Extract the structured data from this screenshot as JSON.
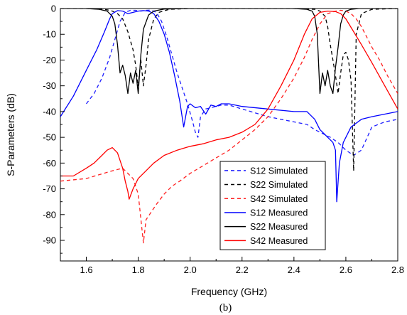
{
  "chart_data": {
    "type": "line",
    "title": "",
    "xlabel": "Frequency (GHz)",
    "ylabel": "S-Parameters (dB)",
    "caption": "(b)",
    "xlim": [
      1.5,
      2.8
    ],
    "ylim": [
      -98,
      0
    ],
    "xticks": [
      1.6,
      1.8,
      2.0,
      2.2,
      2.4,
      2.6,
      2.8
    ],
    "xtick_labels": [
      "1.6",
      "1.8",
      "2.0",
      "2.2",
      "2.4",
      "2.6",
      "2.8"
    ],
    "yticks": [
      0,
      -10,
      -20,
      -30,
      -40,
      -50,
      -60,
      -70,
      -80,
      -90
    ],
    "ytick_labels": [
      "0",
      "-10",
      "-20",
      "-30",
      "-40",
      "-50",
      "-60",
      "-70",
      "-80",
      "-90"
    ],
    "grid": false,
    "legend_position": "bottom-right",
    "series": [
      {
        "name": "S12 Simulated",
        "color": "#1f1fff",
        "dash": "dashed",
        "x": [
          1.6,
          1.63,
          1.66,
          1.69,
          1.71,
          1.73,
          1.75,
          1.77,
          1.79,
          1.81,
          1.83,
          1.85,
          1.87,
          1.89,
          1.91,
          1.93,
          1.95,
          1.97,
          1.99,
          2.01,
          2.02,
          2.03,
          2.04,
          2.06,
          2.08,
          2.1,
          2.12,
          2.15,
          2.2,
          2.3,
          2.4,
          2.45,
          2.48,
          2.51,
          2.54,
          2.57,
          2.6,
          2.63,
          2.66,
          2.7,
          2.75,
          2.8
        ],
        "y": [
          -37,
          -33,
          -27,
          -19,
          -12,
          -5,
          -1.5,
          -0.7,
          -0.7,
          -1,
          -0.7,
          -0.6,
          -1.5,
          -5,
          -11,
          -18,
          -25,
          -31,
          -37,
          -44,
          -48,
          -50,
          -42,
          -39,
          -38.5,
          -38,
          -37.5,
          -37.5,
          -39,
          -42,
          -44,
          -45,
          -47,
          -48.5,
          -50,
          -52,
          -55,
          -57,
          -55,
          -46,
          -44,
          -43
        ]
      },
      {
        "name": "S22 Simulated",
        "color": "#000000",
        "dash": "dashed",
        "x": [
          1.5,
          1.6,
          1.65,
          1.68,
          1.7,
          1.72,
          1.74,
          1.76,
          1.78,
          1.79,
          1.8,
          1.81,
          1.82,
          1.83,
          1.84,
          1.86,
          1.88,
          1.92,
          2.0,
          2.2,
          2.4,
          2.48,
          2.5,
          2.52,
          2.53,
          2.54,
          2.55,
          2.56,
          2.57,
          2.58,
          2.59,
          2.6,
          2.61,
          2.62,
          2.63,
          2.64,
          2.66,
          2.7,
          2.8
        ],
        "y": [
          0,
          0,
          -0.2,
          -0.5,
          -1,
          -2,
          -4,
          -9,
          -16,
          -22,
          -30,
          -20,
          -30,
          -22,
          -12,
          -4,
          -1.5,
          -0.3,
          0,
          0,
          0,
          -0.3,
          -1,
          -3,
          -7,
          -14,
          -20,
          -26,
          -33,
          -25,
          -18,
          -17,
          -20,
          -28,
          -63,
          -10,
          -2,
          -0.3,
          0
        ]
      },
      {
        "name": "S42 Simulated",
        "color": "#ff2020",
        "dash": "dashed",
        "x": [
          1.5,
          1.6,
          1.7,
          1.74,
          1.78,
          1.8,
          1.82,
          1.83,
          1.85,
          1.87,
          1.9,
          1.93,
          1.96,
          2.0,
          2.05,
          2.1,
          2.15,
          2.2,
          2.25,
          2.3,
          2.35,
          2.4,
          2.44,
          2.47,
          2.5,
          2.53,
          2.56,
          2.58,
          2.6,
          2.62,
          2.64,
          2.66,
          2.68,
          2.7,
          2.73,
          2.76,
          2.8
        ],
        "y": [
          -67,
          -66,
          -63,
          -62,
          -66,
          -72,
          -91,
          -82,
          -79,
          -76,
          -72,
          -69,
          -67,
          -64,
          -61,
          -58,
          -55,
          -51,
          -47,
          -42,
          -35,
          -27,
          -19,
          -12,
          -6,
          -2,
          -1,
          -0.7,
          -1,
          -2,
          -4,
          -7,
          -11,
          -15,
          -20,
          -26,
          -33
        ]
      },
      {
        "name": "S12 Measured",
        "color": "#0000ff",
        "dash": "solid",
        "x": [
          1.5,
          1.55,
          1.6,
          1.64,
          1.67,
          1.69,
          1.7,
          1.72,
          1.74,
          1.76,
          1.78,
          1.8,
          1.82,
          1.84,
          1.86,
          1.88,
          1.9,
          1.92,
          1.94,
          1.96,
          1.975,
          1.99,
          2.0,
          2.02,
          2.04,
          2.06,
          2.08,
          2.1,
          2.12,
          2.15,
          2.2,
          2.3,
          2.4,
          2.45,
          2.48,
          2.5,
          2.52,
          2.54,
          2.55,
          2.56,
          2.565,
          2.575,
          2.59,
          2.62,
          2.66,
          2.7,
          2.75,
          2.8
        ],
        "y": [
          -42,
          -34,
          -24,
          -16,
          -9,
          -4,
          -2,
          -0.8,
          -1,
          -2,
          -1.5,
          -1,
          -0.8,
          -1,
          -2,
          -5,
          -10,
          -17,
          -26,
          -36,
          -46,
          -38,
          -37,
          -38.5,
          -38,
          -41,
          -37.5,
          -38,
          -37,
          -37,
          -38,
          -39,
          -40,
          -40,
          -43,
          -47,
          -49,
          -51,
          -52,
          -55,
          -75,
          -60,
          -52,
          -46,
          -43,
          -42,
          -41,
          -40
        ]
      },
      {
        "name": "S22 Measured",
        "color": "#000000",
        "dash": "solid",
        "x": [
          1.5,
          1.6,
          1.65,
          1.68,
          1.7,
          1.71,
          1.72,
          1.73,
          1.74,
          1.75,
          1.76,
          1.77,
          1.78,
          1.79,
          1.8,
          1.81,
          1.82,
          1.84,
          1.86,
          1.9,
          2.0,
          2.2,
          2.4,
          2.45,
          2.47,
          2.48,
          2.49,
          2.5,
          2.51,
          2.52,
          2.53,
          2.54,
          2.55,
          2.56,
          2.57,
          2.58,
          2.59,
          2.6,
          2.62,
          2.65,
          2.7,
          2.8
        ],
        "y": [
          0,
          0,
          -0.3,
          -1,
          -3,
          -6,
          -14,
          -25,
          -22,
          -26,
          -33,
          -25,
          -29,
          -24,
          -33,
          -18,
          -8,
          -2.5,
          -1,
          -0.2,
          0,
          0,
          0,
          -0.3,
          -1,
          -3,
          -10,
          -33,
          -25,
          -30,
          -24,
          -30,
          -33,
          -23,
          -15,
          -6,
          -2.5,
          -1,
          -0.3,
          0,
          0,
          0
        ]
      },
      {
        "name": "S42 Measured",
        "color": "#ff0000",
        "dash": "solid",
        "x": [
          1.5,
          1.55,
          1.6,
          1.63,
          1.66,
          1.68,
          1.7,
          1.72,
          1.74,
          1.75,
          1.76,
          1.765,
          1.78,
          1.8,
          1.83,
          1.86,
          1.9,
          1.95,
          2.0,
          2.05,
          2.1,
          2.15,
          2.2,
          2.25,
          2.3,
          2.35,
          2.4,
          2.44,
          2.47,
          2.5,
          2.53,
          2.56,
          2.58,
          2.6,
          2.63,
          2.66,
          2.7,
          2.75,
          2.8
        ],
        "y": [
          -65,
          -65,
          -62,
          -60,
          -57,
          -55,
          -54,
          -56,
          -62,
          -67,
          -71,
          -74,
          -70,
          -66,
          -63,
          -60,
          -57,
          -55,
          -53.5,
          -52.5,
          -51,
          -50,
          -48,
          -45,
          -39,
          -30,
          -20,
          -10,
          -4,
          -1.5,
          -1,
          -1.2,
          -2,
          -4,
          -9,
          -14,
          -21,
          -30,
          -39
        ]
      }
    ]
  }
}
